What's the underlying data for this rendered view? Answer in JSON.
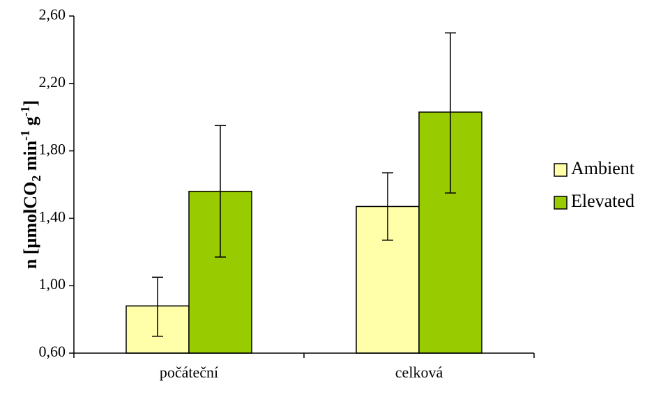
{
  "chart_data": {
    "type": "bar",
    "categories": [
      "počáteční",
      "celková"
    ],
    "series": [
      {
        "name": "Ambient",
        "color": "#FFFFAA",
        "values": [
          0.88,
          1.47
        ],
        "error_low": [
          0.7,
          1.27
        ],
        "error_high": [
          1.05,
          1.67
        ]
      },
      {
        "name": "Elevated",
        "color": "#99CC00",
        "values": [
          1.56,
          2.03
        ],
        "error_low": [
          1.17,
          1.55
        ],
        "error_high": [
          1.95,
          2.5
        ]
      }
    ],
    "title": "",
    "xlabel": "",
    "ylabel": {
      "prefix": "n [µmolCO",
      "sub": "2",
      "mid1": " min",
      "sup1": "-1",
      "mid2": " g",
      "sup2": "-1",
      "suffix": "]"
    },
    "ylim": [
      0.6,
      2.6
    ],
    "yticks": [
      {
        "value": 0.6,
        "label": "0,60"
      },
      {
        "value": 1.0,
        "label": "1,00"
      },
      {
        "value": 1.4,
        "label": "1,40"
      },
      {
        "value": 1.8,
        "label": "1,80"
      },
      {
        "value": 2.2,
        "label": "2,20"
      },
      {
        "value": 2.6,
        "label": "2,60"
      }
    ],
    "grid": false,
    "legend_position": "right"
  }
}
